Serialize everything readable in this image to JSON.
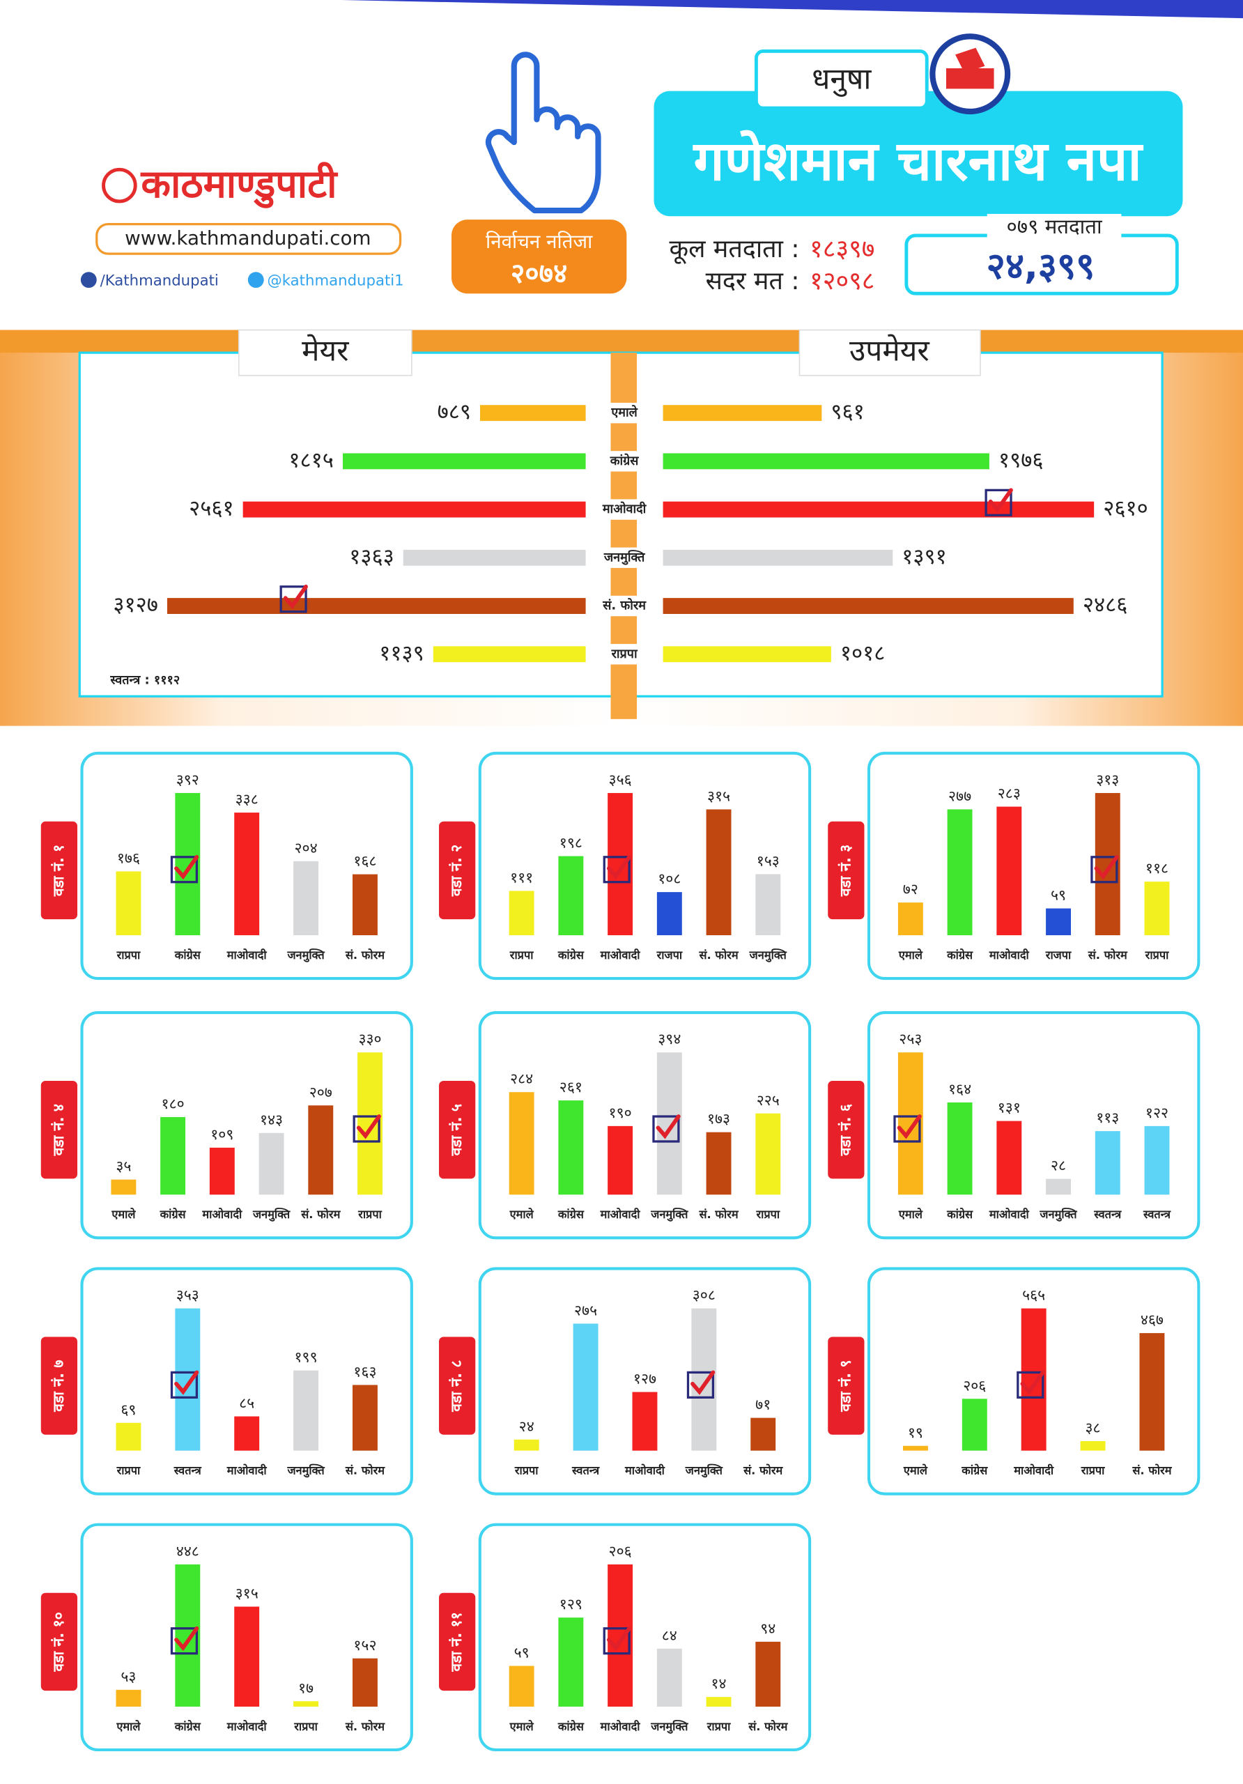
{
  "header": {
    "logo": "काठमाण्डुपाटी",
    "website": "www.kathmandupati.com",
    "facebook": "/Kathmandupati",
    "twitter": "@kathmandupati1",
    "badge_title": "निर्वाचन नतिजा",
    "badge_year": "२०७४",
    "district": "धनुषा",
    "municipality": "गणेशमान चारनाथ नपा",
    "total_voters_label": "कूल मतदाता :",
    "total_voters": "१८३९७",
    "valid_votes_label": "सदर मत :",
    "valid_votes": "१२०९८",
    "voters_079_label": "०७९ मतदाता",
    "voters_079": "२४,३९९"
  },
  "chart_data": [
    {
      "type": "butterfly",
      "categories": [
        "एमाले",
        "कांग्रेस",
        "माओवादी",
        "जनमुक्ति",
        "सं. फोरम",
        "राप्रपा"
      ],
      "colors": [
        "#f9b51a",
        "#40e62e",
        "#f52020",
        "#d6d8da",
        "#c0470f",
        "#f3f020"
      ],
      "series": [
        {
          "name": "मेयर",
          "values": [
            789,
            1815,
            2561,
            1363,
            3127,
            1139
          ],
          "value_labels": [
            "७८९",
            "१८१५",
            "२५६१",
            "१३६३",
            "३१२७",
            "११३९"
          ],
          "checked": [
            false,
            false,
            false,
            false,
            true,
            false
          ]
        },
        {
          "name": "उपमेयर",
          "values": [
            961,
            1976,
            2610,
            1391,
            2486,
            1018
          ],
          "value_labels": [
            "९६१",
            "१९७६",
            "२६१०",
            "१३९१",
            "२४८६",
            "१०१८"
          ],
          "checked": [
            false,
            false,
            true,
            false,
            false,
            false
          ]
        }
      ],
      "note": "स्वतन्त्र : १११२"
    },
    {
      "type": "bar",
      "title": "वडा नं. १",
      "categories": [
        "राप्रपा",
        "कांग्रेस",
        "माओवादी",
        "जनमुक्ति",
        "सं. फोरम"
      ],
      "values": [
        176,
        392,
        338,
        204,
        168
      ],
      "value_labels": [
        "१७६",
        "३९२",
        "३३८",
        "२०४",
        "१६८"
      ],
      "colors": [
        "#f3f020",
        "#40e62e",
        "#f52020",
        "#d6d8da",
        "#c0470f"
      ],
      "checked": [
        false,
        true,
        false,
        false,
        false
      ]
    },
    {
      "type": "bar",
      "title": "वडा नं. २",
      "categories": [
        "राप्रपा",
        "कांग्रेस",
        "माओवादी",
        "राजपा",
        "सं. फोरम",
        "जनमुक्ति"
      ],
      "values": [
        111,
        198,
        356,
        108,
        315,
        153
      ],
      "value_labels": [
        "१११",
        "१९८",
        "३५६",
        "१०८",
        "३१५",
        "१५३"
      ],
      "colors": [
        "#f3f020",
        "#40e62e",
        "#f52020",
        "#2350d4",
        "#c0470f",
        "#d6d8da"
      ],
      "checked": [
        false,
        false,
        true,
        false,
        false,
        false
      ]
    },
    {
      "type": "bar",
      "title": "वडा नं. ३",
      "categories": [
        "एमाले",
        "कांग्रेस",
        "माओवादी",
        "राजपा",
        "सं. फोरम",
        "राप्रपा"
      ],
      "values": [
        72,
        277,
        283,
        59,
        313,
        118
      ],
      "value_labels": [
        "७२",
        "२७७",
        "२८३",
        "५९",
        "३१३",
        "११८"
      ],
      "colors": [
        "#f9b51a",
        "#40e62e",
        "#f52020",
        "#2350d4",
        "#c0470f",
        "#f3f020"
      ],
      "checked": [
        false,
        false,
        false,
        false,
        true,
        false
      ]
    },
    {
      "type": "bar",
      "title": "वडा नं. ४",
      "categories": [
        "एमाले",
        "कांग्रेस",
        "माओवादी",
        "जनमुक्ति",
        "सं. फोरम",
        "राप्रपा"
      ],
      "values": [
        35,
        180,
        109,
        143,
        207,
        330
      ],
      "value_labels": [
        "३५",
        "१८०",
        "१०९",
        "१४३",
        "२०७",
        "३३०"
      ],
      "colors": [
        "#f9b51a",
        "#40e62e",
        "#f52020",
        "#d6d8da",
        "#c0470f",
        "#f3f020"
      ],
      "checked": [
        false,
        false,
        false,
        false,
        false,
        true
      ]
    },
    {
      "type": "bar",
      "title": "वडा नं. ५",
      "categories": [
        "एमाले",
        "कांग्रेस",
        "माओवादी",
        "जनमुक्ति",
        "सं. फोरम",
        "राप्रपा"
      ],
      "values": [
        284,
        261,
        190,
        394,
        173,
        225
      ],
      "value_labels": [
        "२८४",
        "२६१",
        "१९०",
        "३९४",
        "१७३",
        "२२५"
      ],
      "colors": [
        "#f9b51a",
        "#40e62e",
        "#f52020",
        "#d6d8da",
        "#c0470f",
        "#f3f020"
      ],
      "checked": [
        false,
        false,
        false,
        true,
        false,
        false
      ]
    },
    {
      "type": "bar",
      "title": "वडा नं. ६",
      "categories": [
        "एमाले",
        "कांग्रेस",
        "माओवादी",
        "जनमुक्ति",
        "स्वतन्त्र",
        "स्वतन्त्र"
      ],
      "values": [
        253,
        164,
        131,
        28,
        113,
        122
      ],
      "value_labels": [
        "२५३",
        "१६४",
        "१३१",
        "२८",
        "११३",
        "१२२"
      ],
      "colors": [
        "#f9b51a",
        "#40e62e",
        "#f52020",
        "#d6d8da",
        "#5dd3f6",
        "#5dd3f6"
      ],
      "checked": [
        true,
        false,
        false,
        false,
        false,
        false
      ]
    },
    {
      "type": "bar",
      "title": "वडा नं. ७",
      "categories": [
        "राप्रपा",
        "स्वतन्त्र",
        "माओवादी",
        "जनमुक्ति",
        "सं. फोरम"
      ],
      "values": [
        69,
        353,
        85,
        199,
        163
      ],
      "value_labels": [
        "६९",
        "३५३",
        "८५",
        "१९९",
        "१६३"
      ],
      "colors": [
        "#f3f020",
        "#5dd3f6",
        "#f52020",
        "#d6d8da",
        "#c0470f"
      ],
      "checked": [
        false,
        true,
        false,
        false,
        false
      ]
    },
    {
      "type": "bar",
      "title": "वडा नं. ८",
      "categories": [
        "राप्रपा",
        "स्वतन्त्र",
        "माओवादी",
        "जनमुक्ति",
        "सं. फोरम"
      ],
      "values": [
        24,
        275,
        127,
        308,
        71
      ],
      "value_labels": [
        "२४",
        "२७५",
        "१२७",
        "३०८",
        "७१"
      ],
      "colors": [
        "#f3f020",
        "#5dd3f6",
        "#f52020",
        "#d6d8da",
        "#c0470f"
      ],
      "checked": [
        false,
        false,
        false,
        true,
        false
      ]
    },
    {
      "type": "bar",
      "title": "वडा नं. ९",
      "categories": [
        "एमाले",
        "कांग्रेस",
        "माओवादी",
        "राप्रपा",
        "सं. फोरम"
      ],
      "values": [
        19,
        206,
        565,
        38,
        467
      ],
      "value_labels": [
        "१९",
        "२०६",
        "५६५",
        "३८",
        "४६७"
      ],
      "colors": [
        "#f9b51a",
        "#40e62e",
        "#f52020",
        "#f3f020",
        "#c0470f"
      ],
      "checked": [
        false,
        false,
        true,
        false,
        false
      ]
    },
    {
      "type": "bar",
      "title": "वडा नं. १०",
      "categories": [
        "एमाले",
        "कांग्रेस",
        "माओवादी",
        "राप्रपा",
        "सं. फोरम"
      ],
      "values": [
        53,
        448,
        315,
        17,
        152
      ],
      "value_labels": [
        "५३",
        "४४८",
        "३१५",
        "१७",
        "१५२"
      ],
      "colors": [
        "#f9b51a",
        "#40e62e",
        "#f52020",
        "#f3f020",
        "#c0470f"
      ],
      "checked": [
        false,
        true,
        false,
        false,
        false
      ]
    },
    {
      "type": "bar",
      "title": "वडा नं. ११",
      "categories": [
        "एमाले",
        "कांग्रेस",
        "माओवादी",
        "जनमुक्ति",
        "राप्रपा",
        "सं. फोरम"
      ],
      "values": [
        59,
        129,
        206,
        84,
        14,
        94
      ],
      "value_labels": [
        "५९",
        "१२९",
        "२०६",
        "८४",
        "१४",
        "९४"
      ],
      "colors": [
        "#f9b51a",
        "#40e62e",
        "#f52020",
        "#d6d8da",
        "#f3f020",
        "#c0470f"
      ],
      "checked": [
        false,
        false,
        true,
        false,
        false,
        false
      ]
    }
  ]
}
